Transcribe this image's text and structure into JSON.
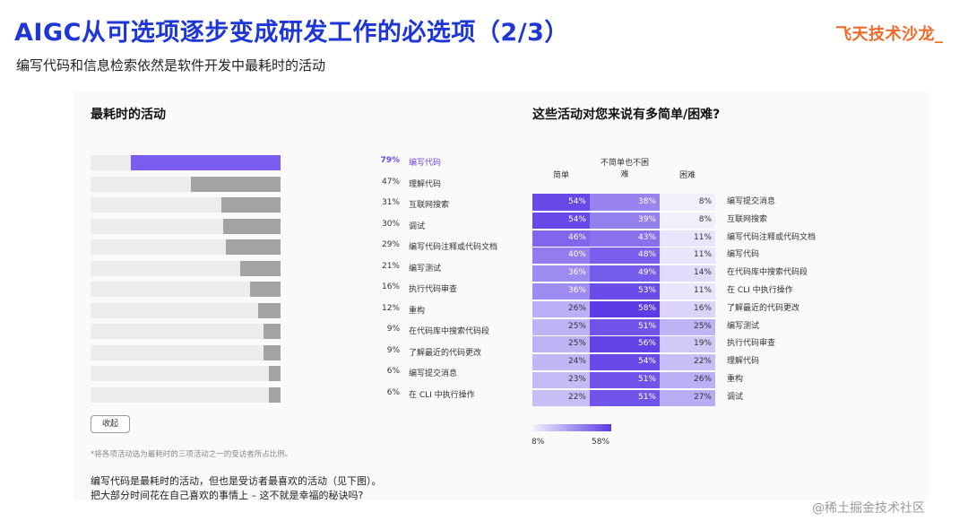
{
  "header": {
    "title": "AIGC从可选项逐步变成研发工作的必选项（2/3）",
    "subtitle": "编写代码和信息检索依然是软件开发中最耗时的活动",
    "logo_text": "飞天技术沙龙_"
  },
  "left_panel": {
    "heading": "最耗时的活动",
    "collapse_label": "收起",
    "footnote": "*将各项活动选为最耗时的三项活动之一的受访者所占比例。",
    "conclusion_line1": "编写代码是最耗时的活动，但也是受访者最喜欢的活动（见下图）。",
    "conclusion_line2": "把大部分时间花在自己喜欢的事情上 – 这不就是幸福的秘诀吗?"
  },
  "right_panel": {
    "heading": "这些活动对您来说有多简单/困难?",
    "col_easy": "简单",
    "col_mid_line1": "不简单也不困",
    "col_mid_line2": "难",
    "col_hard": "困难",
    "legend_min": "8%",
    "legend_max": "58%"
  },
  "colors": {
    "highlight": "#7b5cf0",
    "bar_gray": "#a3a3a3",
    "heatmap_low": "#f3f0fd",
    "heatmap_high": "#5b3be6",
    "title_blue": "#1f36d6",
    "logo_orange": "#f06a28"
  },
  "chart_data": [
    {
      "type": "bar",
      "orientation": "horizontal",
      "title": "最耗时的活动",
      "xlim": [
        0,
        100
      ],
      "highlight_index": 0,
      "categories": [
        "编写代码",
        "理解代码",
        "互联网搜索",
        "调试",
        "编写代码注释或代码文档",
        "编写测试",
        "执行代码审查",
        "重构",
        "在代码库中搜索代码段",
        "了解最近的代码更改",
        "编写提交消息",
        "在 CLI 中执行操作"
      ],
      "values": [
        79,
        47,
        31,
        30,
        29,
        21,
        16,
        12,
        9,
        9,
        6,
        6
      ],
      "value_labels": [
        "79%",
        "47%",
        "31%",
        "30%",
        "29%",
        "21%",
        "16%",
        "12%",
        "9%",
        "9%",
        "6%",
        "6%"
      ]
    },
    {
      "type": "heatmap",
      "title": "这些活动对您来说有多简单/困难?",
      "columns": [
        "简单",
        "不简单也不困难",
        "困难"
      ],
      "rows": [
        "编写提交消息",
        "互联网搜索",
        "编写代码注释或代码文档",
        "编写代码",
        "在代码库中搜索代码段",
        "在 CLI 中执行操作",
        "了解最近的代码更改",
        "编写测试",
        "执行代码审查",
        "理解代码",
        "重构",
        "调试"
      ],
      "values": [
        [
          54,
          38,
          8
        ],
        [
          54,
          39,
          8
        ],
        [
          46,
          43,
          11
        ],
        [
          40,
          48,
          11
        ],
        [
          36,
          49,
          14
        ],
        [
          36,
          53,
          11
        ],
        [
          26,
          58,
          16
        ],
        [
          25,
          51,
          25
        ],
        [
          25,
          56,
          19
        ],
        [
          24,
          54,
          22
        ],
        [
          23,
          51,
          26
        ],
        [
          22,
          51,
          27
        ]
      ],
      "cell_labels": [
        [
          "54%",
          "38%",
          "8%"
        ],
        [
          "54%",
          "39%",
          "8%"
        ],
        [
          "46%",
          "43%",
          "11%"
        ],
        [
          "40%",
          "48%",
          "11%"
        ],
        [
          "36%",
          "49%",
          "14%"
        ],
        [
          "36%",
          "53%",
          "11%"
        ],
        [
          "26%",
          "58%",
          "16%"
        ],
        [
          "25%",
          "51%",
          "25%"
        ],
        [
          "25%",
          "56%",
          "19%"
        ],
        [
          "24%",
          "54%",
          "22%"
        ],
        [
          "23%",
          "51%",
          "26%"
        ],
        [
          "22%",
          "51%",
          "27%"
        ]
      ],
      "color_range": [
        8,
        58
      ]
    }
  ],
  "watermark": "@稀土掘金技术社区"
}
